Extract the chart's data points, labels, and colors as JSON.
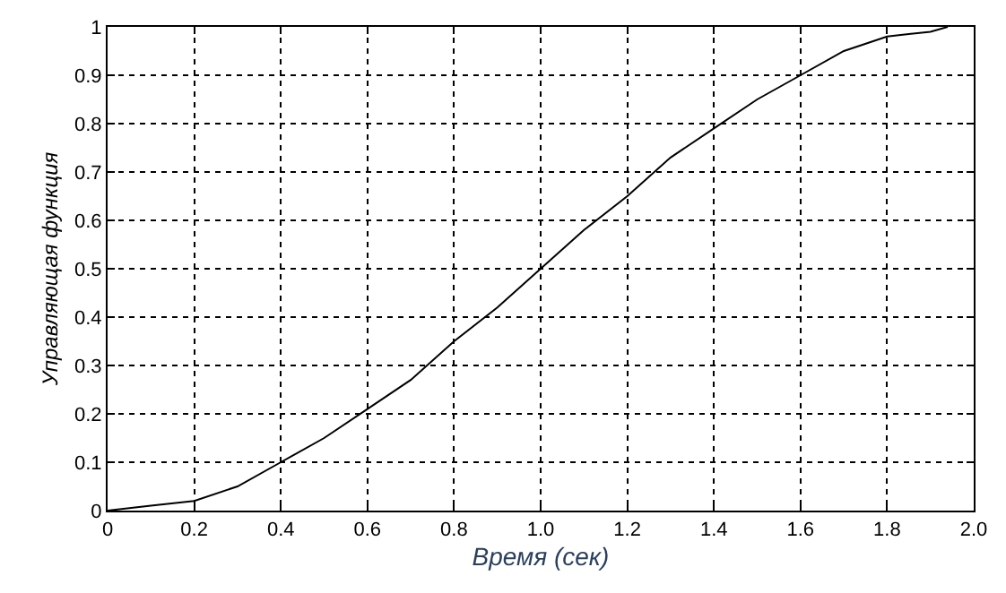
{
  "chart_data": {
    "type": "line",
    "xlabel": "Время (сек)",
    "ylabel": "Управляющая функция",
    "x": [
      0,
      0.1,
      0.2,
      0.3,
      0.4,
      0.5,
      0.6,
      0.7,
      0.8,
      0.9,
      1.0,
      1.1,
      1.2,
      1.3,
      1.4,
      1.5,
      1.6,
      1.7,
      1.8,
      1.9,
      1.94
    ],
    "series": [
      {
        "color": "#000000",
        "values": [
          0,
          0.01,
          0.02,
          0.05,
          0.1,
          0.15,
          0.21,
          0.27,
          0.35,
          0.42,
          0.5,
          0.58,
          0.65,
          0.73,
          0.79,
          0.85,
          0.9,
          0.95,
          0.98,
          0.99,
          1.0
        ]
      }
    ],
    "xlim": [
      0,
      2.0
    ],
    "ylim": [
      0,
      1
    ],
    "xticks": [
      0,
      0.2,
      0.4,
      0.6,
      0.8,
      {
        "value": 1.0,
        "label": "1.0"
      },
      1.2,
      1.4,
      1.6,
      1.8,
      {
        "value": 2.0,
        "label": "2.0"
      }
    ],
    "yticks": [
      0,
      0.1,
      0.2,
      0.3,
      0.4,
      0.5,
      0.6,
      0.7,
      0.8,
      0.9,
      1
    ],
    "grid": true,
    "legend": false,
    "line_style": "solid",
    "marker": "none"
  }
}
